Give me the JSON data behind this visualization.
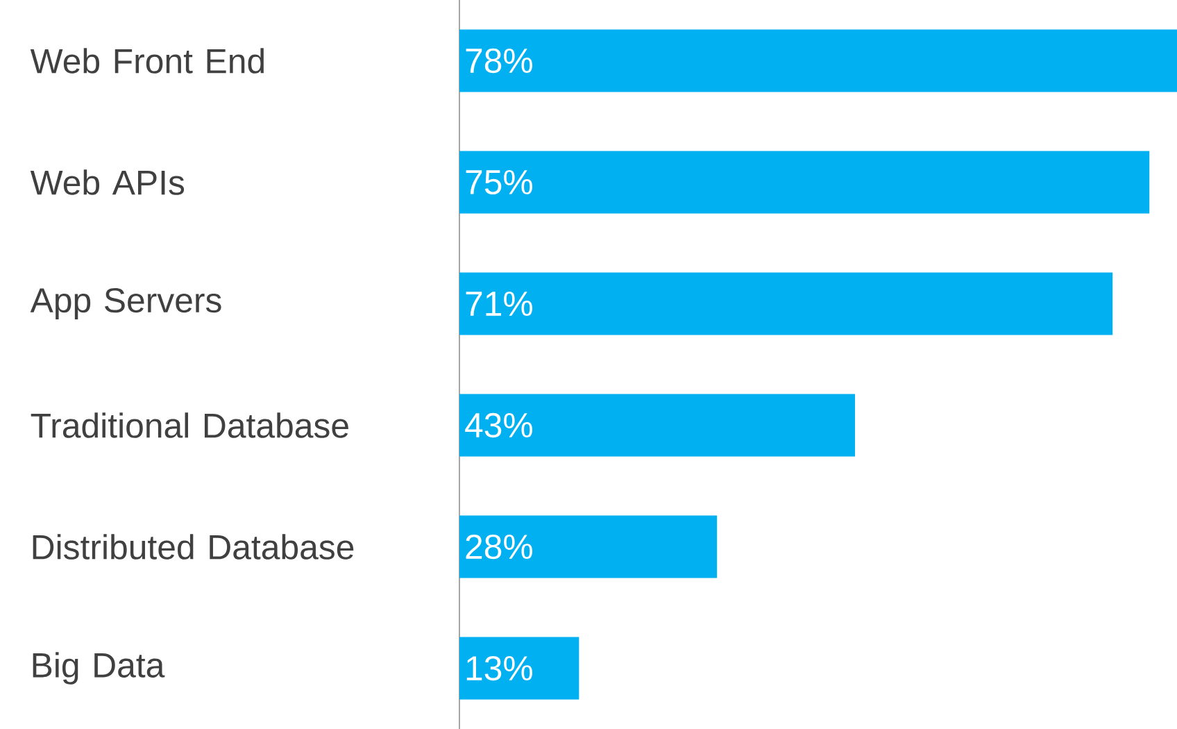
{
  "chart_data": {
    "type": "bar",
    "orientation": "horizontal",
    "categories": [
      "Web Front End",
      "Web APIs",
      "App Servers",
      "Traditional Database",
      "Distributed Database",
      "Big Data"
    ],
    "values": [
      78,
      75,
      71,
      43,
      28,
      13
    ],
    "value_labels": [
      "78%",
      "75%",
      "71%",
      "43%",
      "28%",
      "13%"
    ],
    "color": "#00b0f0"
  }
}
